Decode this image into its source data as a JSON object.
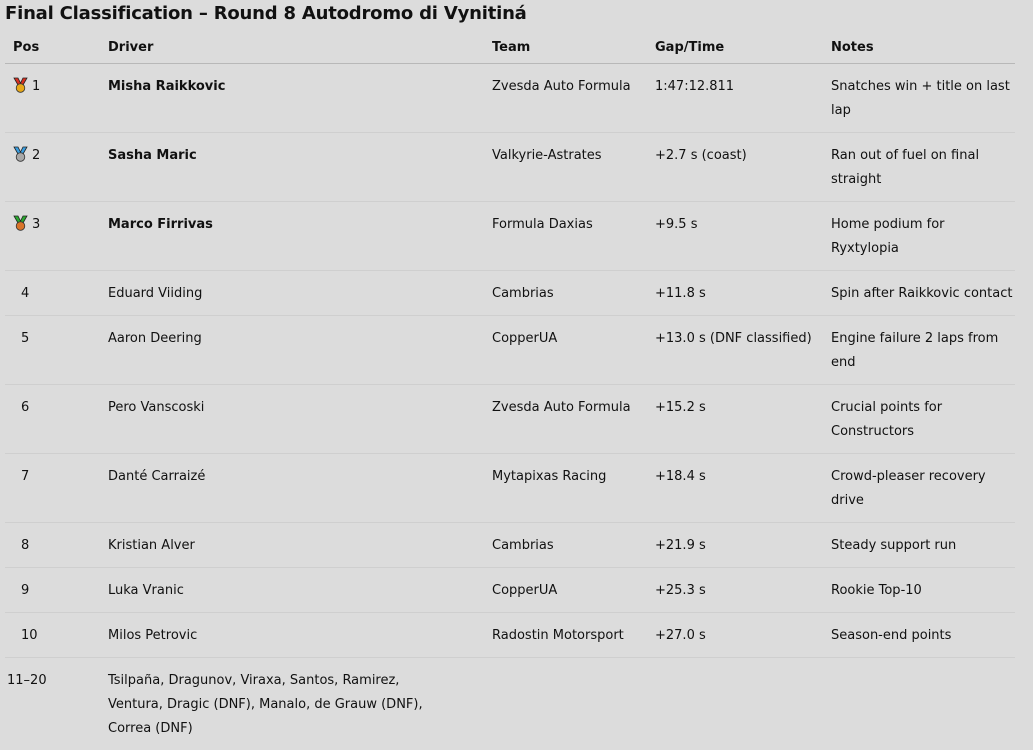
{
  "title": "Final Classification – Round 8 Autodromo di Vynitiná",
  "columns": {
    "pos": "Pos",
    "driver": "Driver",
    "team": "Team",
    "gap": "Gap/Time",
    "notes": "Notes"
  },
  "rows": [
    {
      "pos": "1",
      "medal": "gold-medal",
      "driver": "Misha Raikkovic",
      "team": "Zvesda Auto Formula",
      "gap": "1:47:12.811",
      "notes": "Snatches win + title on last lap"
    },
    {
      "pos": "2",
      "medal": "silver-medal",
      "driver": "Sasha Maric",
      "team": "Valkyrie-Astrates",
      "gap": "+2.7 s (coast)",
      "notes": "Ran out of fuel on final straight"
    },
    {
      "pos": "3",
      "medal": "bronze-medal",
      "driver": "Marco Firrivas",
      "team": "Formula Daxias",
      "gap": "+9.5 s",
      "notes": "Home podium for Ryxtylopia"
    },
    {
      "pos": "4",
      "driver": "Eduard Viiding",
      "team": "Cambrias",
      "gap": "+11.8 s",
      "notes": "Spin after Raikkovic contact"
    },
    {
      "pos": "5",
      "driver": "Aaron Deering",
      "team": "CopperUA",
      "gap": "+13.0 s (DNF classified)",
      "notes": "Engine failure 2 laps from end"
    },
    {
      "pos": "6",
      "driver": "Pero Vanscoski",
      "team": "Zvesda Auto Formula",
      "gap": "+15.2 s",
      "notes": "Crucial points for Constructors"
    },
    {
      "pos": "7",
      "driver": "Danté Carraizé",
      "team": "Mytapixas Racing",
      "gap": "+18.4 s",
      "notes": "Crowd-pleaser recovery drive"
    },
    {
      "pos": "8",
      "driver": "Kristian Alver",
      "team": "Cambrias",
      "gap": "+21.9 s",
      "notes": "Steady support run"
    },
    {
      "pos": "9",
      "driver": "Luka Vranic",
      "team": "CopperUA",
      "gap": "+25.3 s",
      "notes": "Rookie Top-10"
    },
    {
      "pos": "10",
      "driver": "Milos Petrovic",
      "team": "Radostin Motorsport",
      "gap": "+27.0 s",
      "notes": "Season-end points"
    }
  ],
  "others": {
    "pos": "11–20",
    "drivers": "Tsilpaña, Dragunov, Viraxa, Santos, Ramirez, Ventura, Dragic (DNF), Manalo, de Grauw (DNF), Correa (DNF)"
  },
  "medal_colors": {
    "gold-medal": {
      "ribbon": "#d83020",
      "disc": "#e8a818"
    },
    "silver-medal": {
      "ribbon": "#3a9ee0",
      "disc": "#a8a8a8"
    },
    "bronze-medal": {
      "ribbon": "#2aa830",
      "disc": "#d8742a"
    }
  }
}
